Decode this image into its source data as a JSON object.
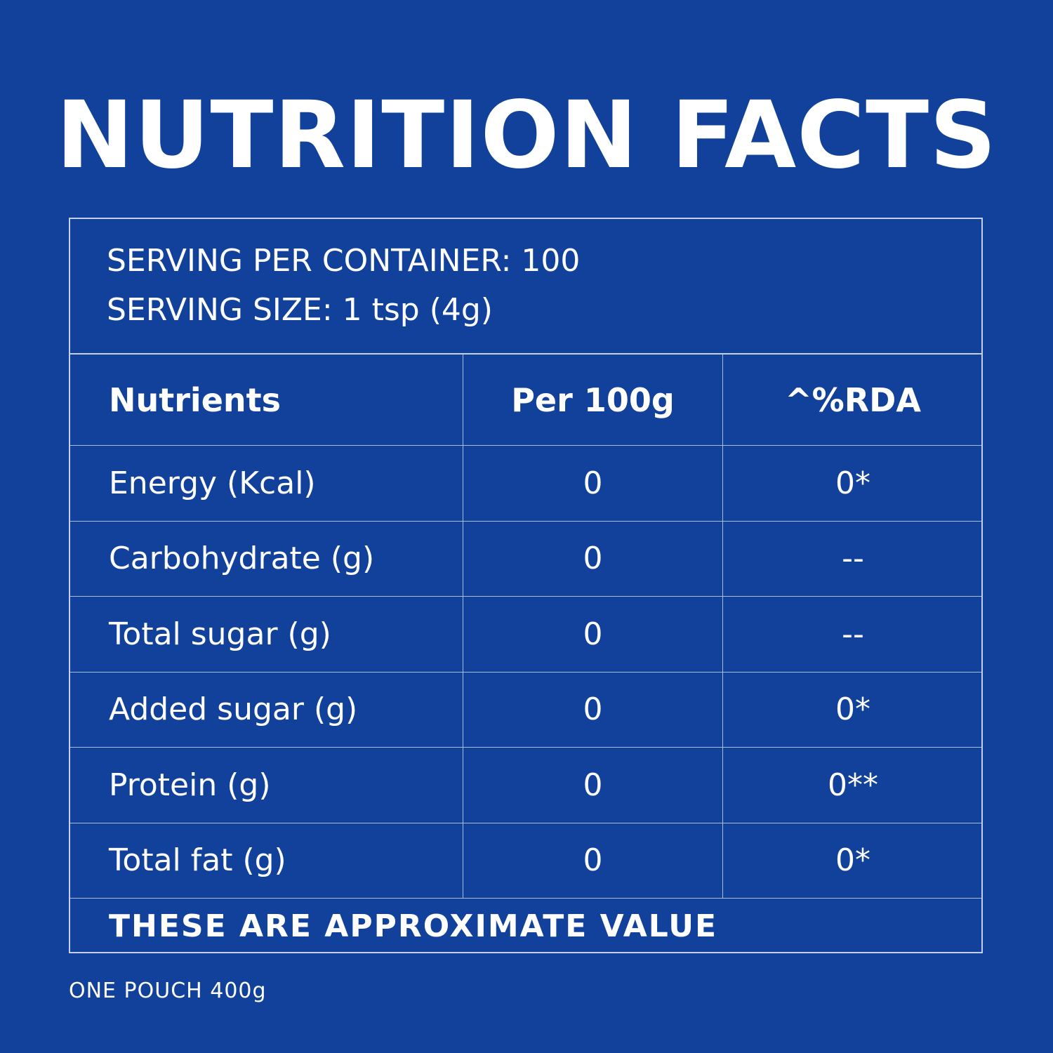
{
  "title": "NUTRITION FACTS",
  "serving": {
    "per_container": "SERVING PER CONTAINER: 100",
    "size": "SERVING SIZE: 1 tsp (4g)"
  },
  "table": {
    "headers": [
      "Nutrients",
      "Per 100g",
      "^%RDA"
    ],
    "rows": [
      [
        "Energy (Kcal)",
        "0",
        "0*"
      ],
      [
        "Carbohydrate (g)",
        "0",
        "--"
      ],
      [
        "Total sugar (g)",
        "0",
        "--"
      ],
      [
        "Added sugar (g)",
        "0",
        "0*"
      ],
      [
        "Protein (g)",
        "0",
        "0**"
      ],
      [
        "Total fat (g)",
        "0",
        "0*"
      ]
    ]
  },
  "footer_note": "THESE ARE APPROXIMATE VALUE",
  "pouch_note": "ONE POUCH 400g",
  "colors": {
    "background": "#11419a",
    "text": "#ffffff"
  }
}
